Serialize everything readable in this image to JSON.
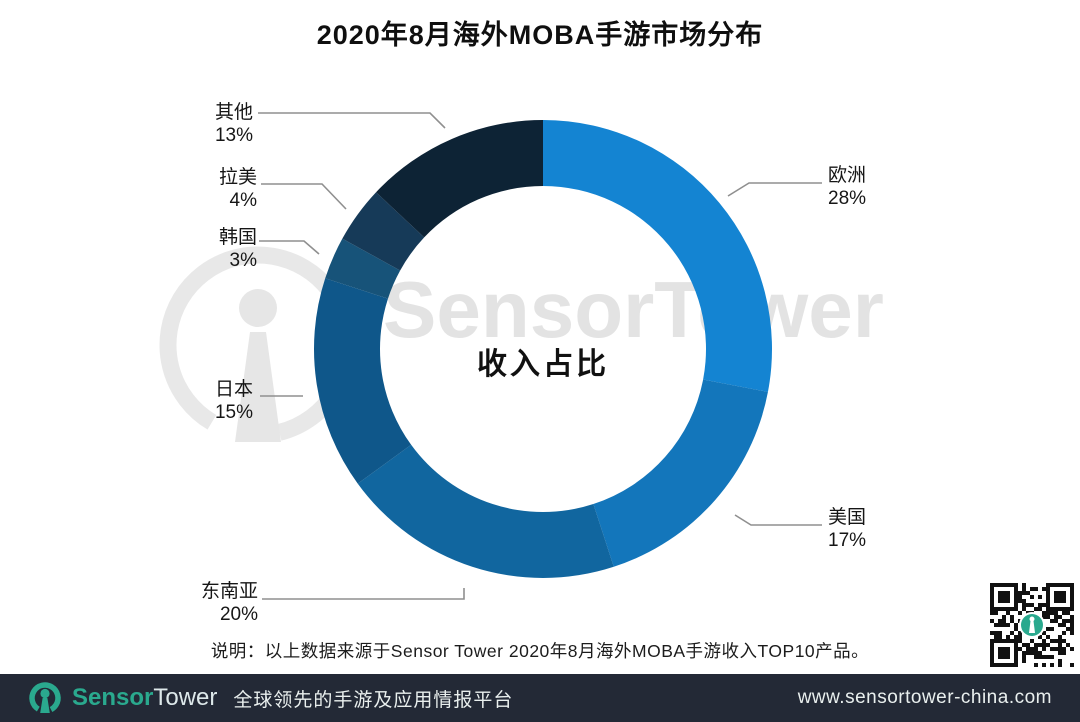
{
  "title": "2020年8月海外MOBA手游市场分布",
  "watermark": "SensorTower",
  "note": "说明：以上数据来源于Sensor Tower 2020年8月海外MOBA手游收入TOP10产品。",
  "chart_data": {
    "type": "pie",
    "donut": true,
    "title": "2020年8月海外MOBA手游市场分布",
    "center_label": "收入占比",
    "start_angle_deg": 0,
    "direction": "clockwise",
    "legend_position": "callout-labels",
    "segments": [
      {
        "label": "欧洲",
        "value": 28,
        "pct_label": "28%",
        "color": "#1484d2"
      },
      {
        "label": "美国",
        "value": 17,
        "pct_label": "17%",
        "color": "#1376bb"
      },
      {
        "label": "东南亚",
        "value": 20,
        "pct_label": "20%",
        "color": "#11669f"
      },
      {
        "label": "日本",
        "value": 15,
        "pct_label": "15%",
        "color": "#0f578a"
      },
      {
        "label": "韩国",
        "value": 3,
        "pct_label": "3%",
        "color": "#175379"
      },
      {
        "label": "拉美",
        "value": 4,
        "pct_label": "4%",
        "color": "#163a58"
      },
      {
        "label": "其他",
        "value": 13,
        "pct_label": "13%",
        "color": "#0d2335"
      }
    ]
  },
  "footer": {
    "brand_sensor": "Sensor",
    "brand_tower": "Tower",
    "tagline": "全球领先的手游及应用情报平台",
    "url": "www.sensortower-china.com",
    "brand_color": "#2aa98e",
    "bg_color": "#232936",
    "text_color": "#e9efee"
  }
}
